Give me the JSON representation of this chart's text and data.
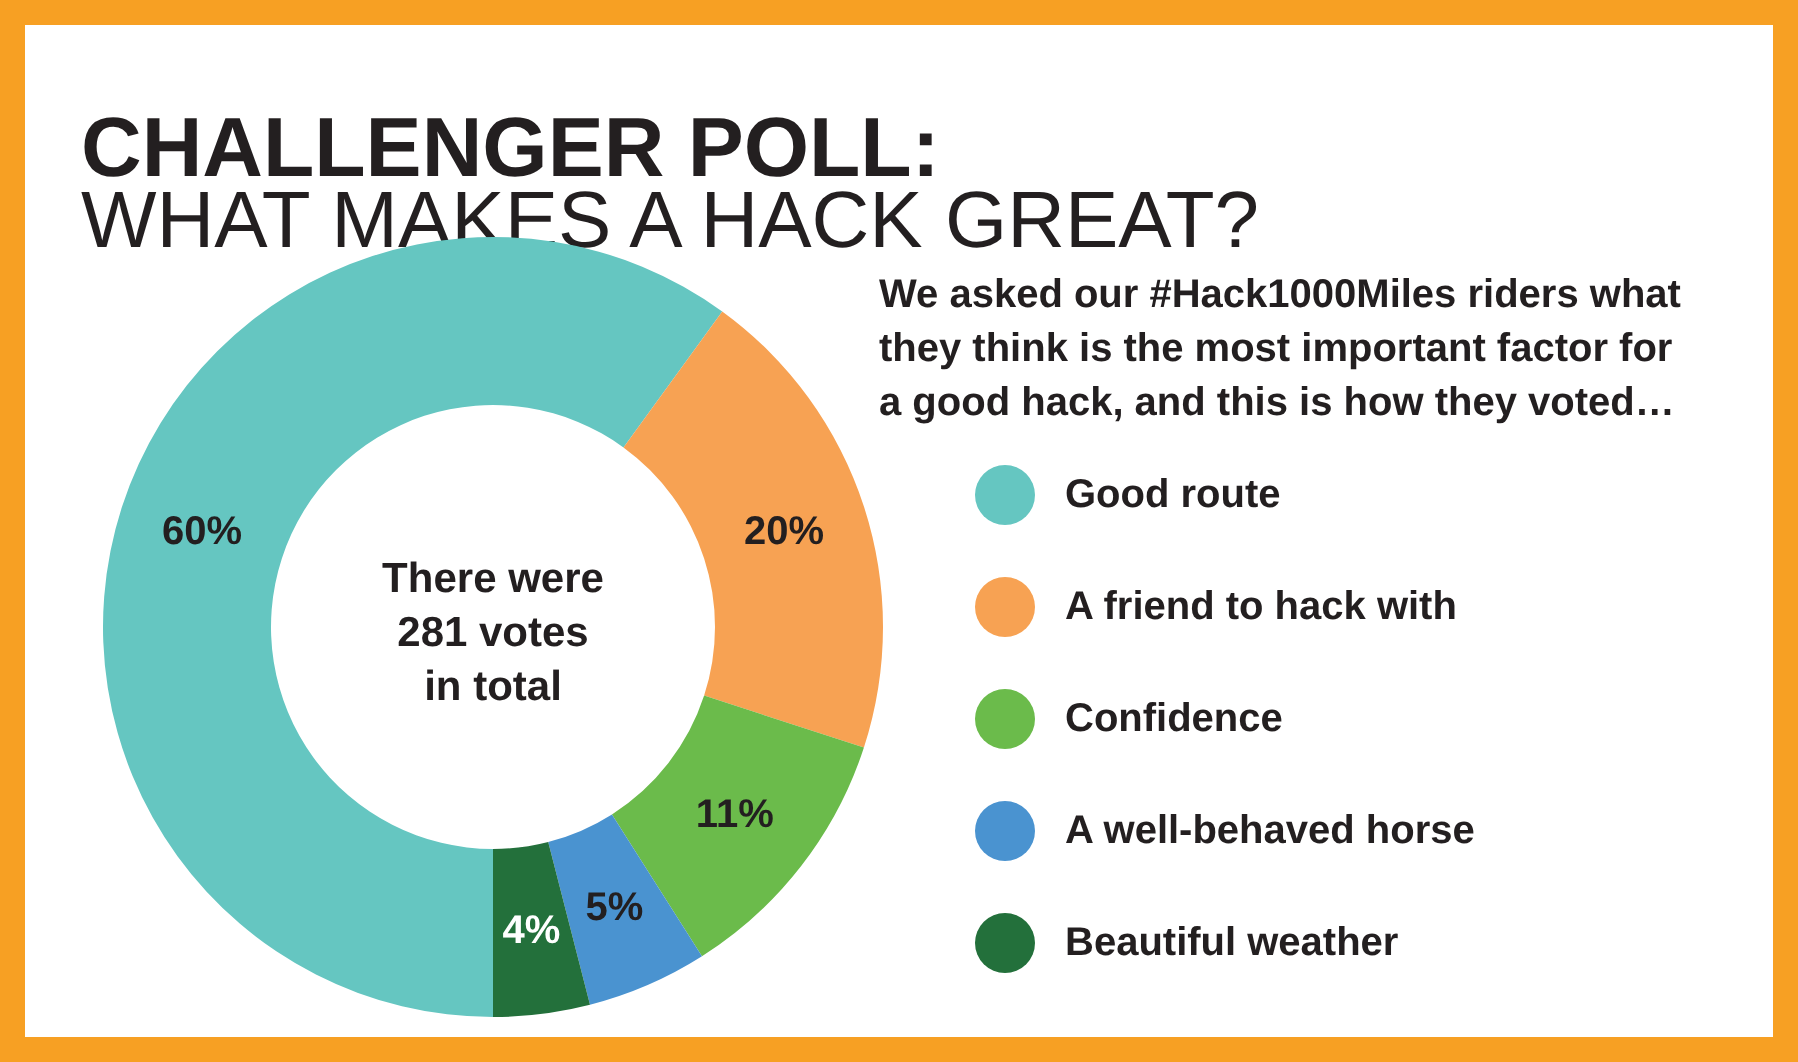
{
  "chart_data": {
    "type": "donut",
    "title": "CHALLENGER POLL:",
    "subtitle": "WHAT MAKES A HACK GREAT?",
    "categories": [
      "Good route",
      "A friend to hack with",
      "Confidence",
      "A well-behaved horse",
      "Beautiful weather"
    ],
    "values": [
      60,
      20,
      11,
      5,
      4
    ],
    "colors": [
      "#65c6c1",
      "#f7a253",
      "#6bbb4b",
      "#4a93d0",
      "#23703b"
    ],
    "value_labels": [
      "60%",
      "20%",
      "11%",
      "5%",
      "4%"
    ],
    "annotations": [
      "There were 281 votes in total",
      "We asked our #Hack1000Miles riders what they think is the most important factor for a good hack, and this is how they voted…"
    ],
    "legend": "right"
  }
}
